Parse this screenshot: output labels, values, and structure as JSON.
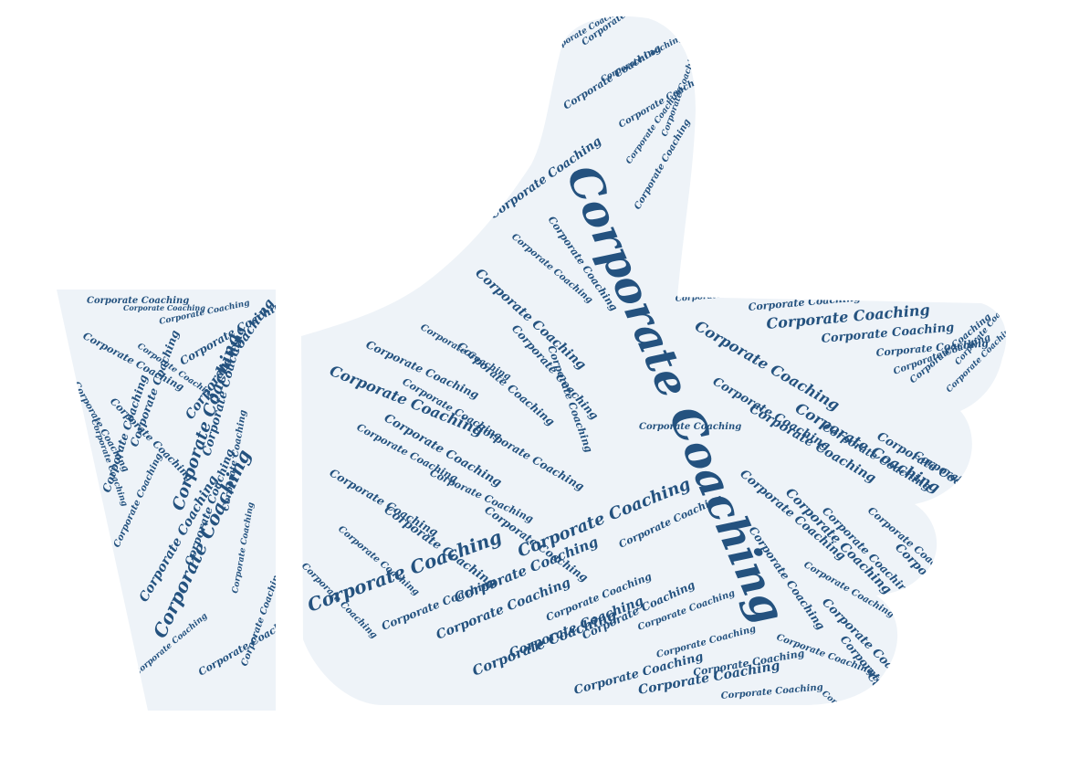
{
  "phrase": "Corporate Coaching",
  "colors": {
    "background": "#ffffff",
    "shape_fill": "#eef3f8",
    "text": "#24527f"
  }
}
